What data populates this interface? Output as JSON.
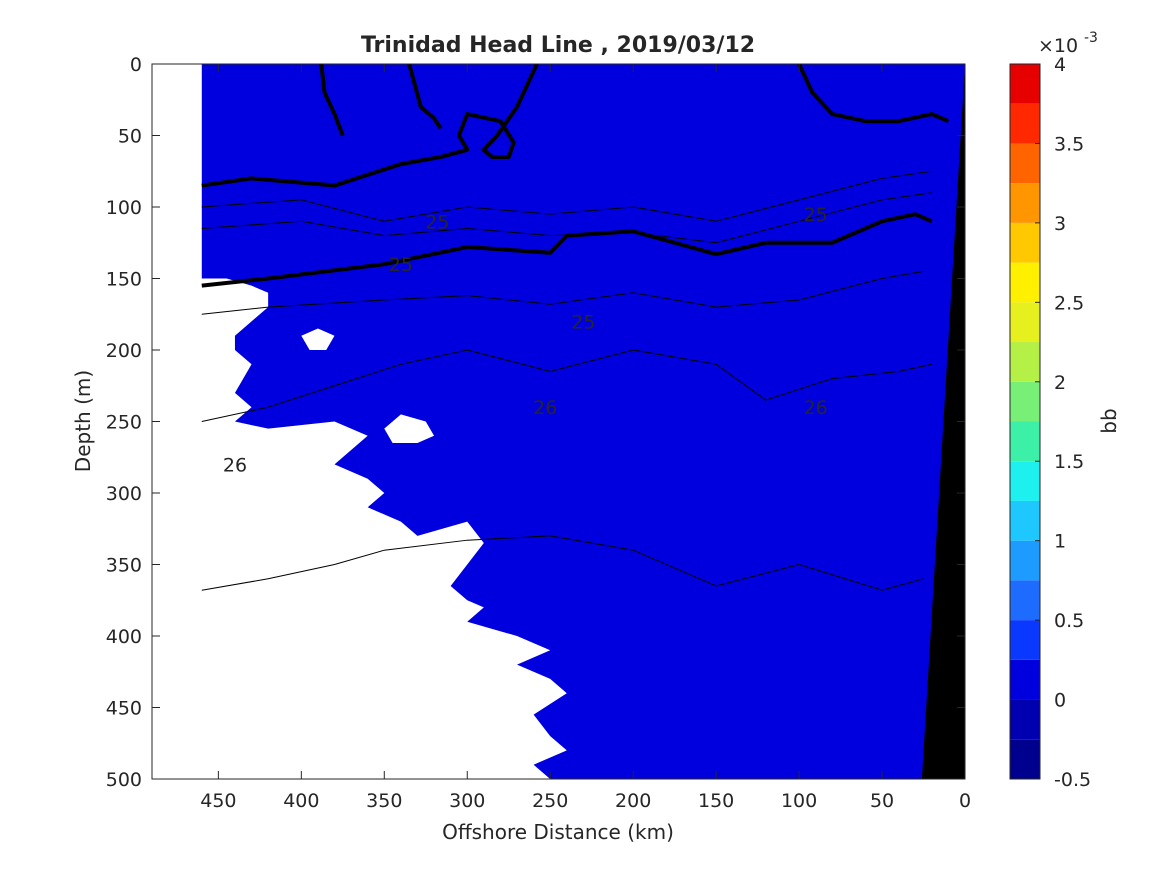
{
  "chart_data": {
    "type": "contour",
    "title": "Trinidad Head Line , 2019/03/12",
    "xlabel": "Offshore Distance (km)",
    "ylabel": "Depth (m)",
    "xlim": [
      490,
      0
    ],
    "x_reversed": true,
    "ylim": [
      0,
      500
    ],
    "y_reversed": true,
    "xticks": [
      450,
      400,
      350,
      300,
      250,
      200,
      150,
      100,
      50,
      0
    ],
    "yticks": [
      0,
      50,
      100,
      150,
      200,
      250,
      300,
      350,
      400,
      450,
      500
    ],
    "grid": false,
    "colorbar": {
      "label": "bb",
      "exponent_label": "×10",
      "exponent": "-3",
      "ticks": [
        "4",
        "3.5",
        "3",
        "2.5",
        "2",
        "1.5",
        "1",
        "0.5",
        "0",
        "-0.5"
      ],
      "tick_values": [
        4,
        3.5,
        3,
        2.5,
        2,
        1.5,
        1,
        0.5,
        0,
        -0.5
      ],
      "range": [
        -0.5,
        4
      ],
      "levels": [
        -0.5,
        -0.25,
        0,
        0.25,
        0.5,
        0.75,
        1,
        1.25,
        1.5,
        1.75,
        2,
        2.25,
        2.5,
        2.75,
        3,
        3.25,
        3.5,
        3.75,
        4
      ],
      "colors": [
        "#00008f",
        "#0000b0",
        "#0000df",
        "#0a38ff",
        "#1e6cff",
        "#1e9bff",
        "#1ec8ff",
        "#1ef0f0",
        "#3cf0a8",
        "#78f078",
        "#b4f046",
        "#e6f01e",
        "#fff000",
        "#ffc800",
        "#ff9600",
        "#ff6400",
        "#ff2800",
        "#e60000",
        "#b40000"
      ]
    },
    "background_level": 0.05,
    "density_isolines": {
      "labeled": [
        {
          "value": "25",
          "label_positions": [
            [
              318,
              110
            ],
            [
              340,
              140
            ],
            [
              230,
              180
            ],
            [
              90,
              105
            ]
          ]
        },
        {
          "value": "26",
          "label_positions": [
            [
              440,
              280
            ],
            [
              253,
              240
            ],
            [
              90,
              240
            ]
          ]
        }
      ],
      "bold": [
        [
          [
            388,
            0
          ],
          [
            386,
            20
          ],
          [
            380,
            35
          ],
          [
            375,
            50
          ]
        ],
        [
          [
            335,
            0
          ],
          [
            328,
            30
          ],
          [
            320,
            38
          ],
          [
            316,
            45
          ]
        ],
        [
          [
            258,
            0
          ],
          [
            270,
            30
          ],
          [
            282,
            50
          ],
          [
            290,
            60
          ],
          [
            285,
            65
          ],
          [
            275,
            65
          ],
          [
            272,
            55
          ],
          [
            280,
            40
          ],
          [
            300,
            35
          ],
          [
            305,
            50
          ],
          [
            300,
            60
          ],
          [
            316,
            65
          ],
          [
            340,
            70
          ],
          [
            380,
            85
          ],
          [
            430,
            80
          ],
          [
            460,
            85
          ]
        ],
        [
          [
            100,
            0
          ],
          [
            92,
            20
          ],
          [
            80,
            35
          ],
          [
            60,
            40
          ],
          [
            40,
            40
          ],
          [
            20,
            35
          ],
          [
            10,
            40
          ]
        ],
        [
          [
            460,
            155
          ],
          [
            420,
            150
          ],
          [
            350,
            140
          ],
          [
            300,
            128
          ],
          [
            250,
            132
          ],
          [
            240,
            120
          ],
          [
            200,
            117
          ],
          [
            150,
            133
          ],
          [
            120,
            125
          ],
          [
            80,
            125
          ],
          [
            50,
            110
          ],
          [
            30,
            105
          ],
          [
            20,
            110
          ]
        ]
      ],
      "thin": [
        [
          [
            460,
            100
          ],
          [
            400,
            95
          ],
          [
            350,
            110
          ],
          [
            300,
            100
          ],
          [
            250,
            105
          ],
          [
            200,
            100
          ],
          [
            150,
            110
          ],
          [
            100,
            95
          ],
          [
            50,
            80
          ],
          [
            20,
            75
          ]
        ],
        [
          [
            460,
            115
          ],
          [
            400,
            110
          ],
          [
            350,
            120
          ],
          [
            300,
            115
          ],
          [
            250,
            120
          ],
          [
            200,
            118
          ],
          [
            150,
            125
          ],
          [
            100,
            110
          ],
          [
            50,
            95
          ],
          [
            20,
            90
          ]
        ],
        [
          [
            460,
            175
          ],
          [
            420,
            170
          ],
          [
            350,
            165
          ],
          [
            300,
            162
          ],
          [
            250,
            168
          ],
          [
            200,
            160
          ],
          [
            150,
            170
          ],
          [
            100,
            165
          ],
          [
            50,
            150
          ],
          [
            25,
            145
          ]
        ],
        [
          [
            460,
            250
          ],
          [
            420,
            240
          ],
          [
            380,
            225
          ],
          [
            340,
            210
          ],
          [
            300,
            200
          ],
          [
            250,
            215
          ],
          [
            200,
            200
          ],
          [
            150,
            210
          ],
          [
            120,
            235
          ],
          [
            80,
            220
          ],
          [
            40,
            215
          ],
          [
            20,
            210
          ]
        ],
        [
          [
            460,
            368
          ],
          [
            420,
            360
          ],
          [
            380,
            350
          ],
          [
            350,
            340
          ],
          [
            300,
            333
          ],
          [
            250,
            330
          ],
          [
            200,
            340
          ],
          [
            150,
            365
          ],
          [
            100,
            350
          ],
          [
            50,
            368
          ],
          [
            25,
            360
          ]
        ]
      ]
    },
    "bathymetry": {
      "color": "#000000",
      "top": [
        0,
        0
      ],
      "bottom_left": [
        26,
        500
      ],
      "bottom_right": [
        0,
        500
      ]
    },
    "nodata_regions": [
      [
        [
          490,
          0
        ],
        [
          460,
          0
        ],
        [
          460,
          150
        ],
        [
          445,
          150
        ],
        [
          430,
          155
        ],
        [
          420,
          160
        ],
        [
          420,
          170
        ],
        [
          440,
          190
        ],
        [
          440,
          200
        ],
        [
          430,
          210
        ],
        [
          440,
          230
        ],
        [
          430,
          240
        ],
        [
          440,
          250
        ],
        [
          420,
          255
        ],
        [
          380,
          250
        ],
        [
          360,
          260
        ],
        [
          380,
          280
        ],
        [
          360,
          290
        ],
        [
          350,
          300
        ],
        [
          360,
          310
        ],
        [
          340,
          320
        ],
        [
          330,
          330
        ],
        [
          300,
          320
        ],
        [
          290,
          335
        ],
        [
          300,
          350
        ],
        [
          310,
          365
        ],
        [
          300,
          375
        ],
        [
          290,
          380
        ],
        [
          300,
          390
        ],
        [
          270,
          400
        ],
        [
          250,
          410
        ],
        [
          270,
          420
        ],
        [
          250,
          430
        ],
        [
          240,
          440
        ],
        [
          260,
          455
        ],
        [
          250,
          470
        ],
        [
          240,
          480
        ],
        [
          260,
          490
        ],
        [
          250,
          500
        ],
        [
          490,
          500
        ]
      ],
      [
        [
          390,
          185
        ],
        [
          380,
          190
        ],
        [
          385,
          200
        ],
        [
          395,
          200
        ],
        [
          400,
          190
        ]
      ],
      [
        [
          340,
          245
        ],
        [
          325,
          250
        ],
        [
          320,
          260
        ],
        [
          330,
          265
        ],
        [
          345,
          265
        ],
        [
          350,
          255
        ]
      ]
    ]
  }
}
